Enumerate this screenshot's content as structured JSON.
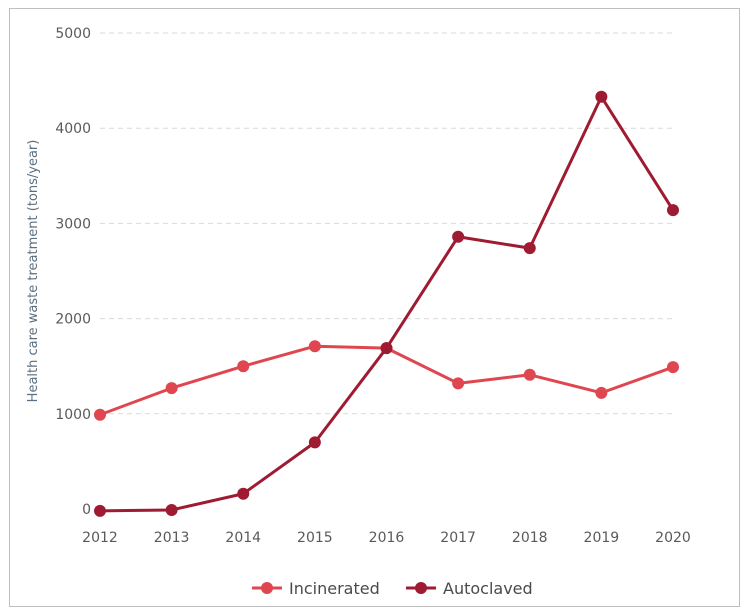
{
  "chart_data": {
    "type": "line",
    "title": "",
    "xlabel": "",
    "ylabel": "Health care waste treatment (tons/year)",
    "x": [
      "2012",
      "2013",
      "2014",
      "2015",
      "2016",
      "2017",
      "2018",
      "2019",
      "2020"
    ],
    "ylim": [
      0,
      5000
    ],
    "yticks": [
      0,
      1000,
      2000,
      3000,
      4000,
      5000
    ],
    "grid": true,
    "legend_position": "bottom",
    "series": [
      {
        "name": "Incinerated",
        "color": "#e0464f",
        "values": [
          990,
          1270,
          1500,
          1710,
          1690,
          1320,
          1410,
          1220,
          1490
        ]
      },
      {
        "name": "Autoclaved",
        "color": "#9e1b32",
        "values": [
          -20,
          -10,
          160,
          700,
          1690,
          2860,
          2740,
          4330,
          3140
        ]
      }
    ]
  }
}
